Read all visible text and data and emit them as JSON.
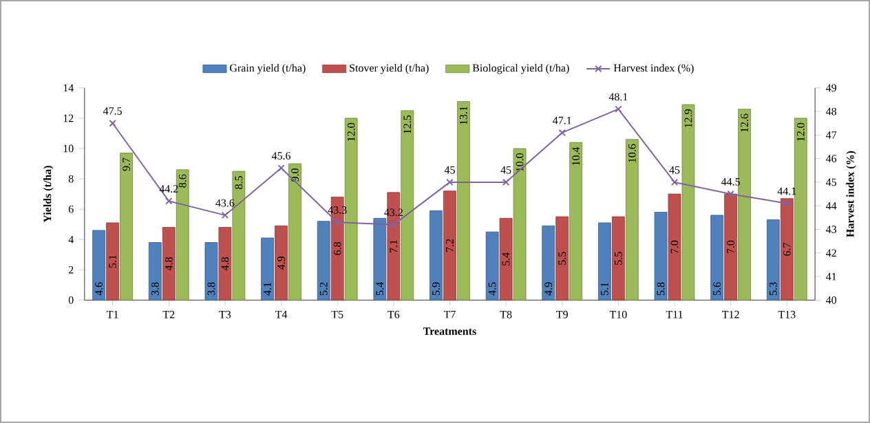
{
  "chart_data": {
    "type": "bar",
    "xlabel": "Treatments",
    "ylabel": "Yields (t/ha)",
    "y2label": "Harvest index (%)",
    "categories": [
      "T1",
      "T2",
      "T3",
      "T4",
      "T5",
      "T6",
      "T7",
      "T8",
      "T9",
      "T10",
      "T11",
      "T12",
      "T13"
    ],
    "series": [
      {
        "name": "Grain yield (t/ha)",
        "type": "bar",
        "color": "#4f81bd",
        "values": [
          4.6,
          3.8,
          3.8,
          4.1,
          5.2,
          5.4,
          5.9,
          4.5,
          4.9,
          5.1,
          5.8,
          5.6,
          5.3
        ],
        "value_labels": [
          "4.6",
          "3.8",
          "3.8",
          "4.1",
          "5.2",
          "5.4",
          "5.9",
          "4.5",
          "4.9",
          "5.1",
          "5.8",
          "5.6",
          "5.3"
        ]
      },
      {
        "name": "Stover yield (t/ha)",
        "type": "bar",
        "color": "#c0504d",
        "values": [
          5.1,
          4.8,
          4.8,
          4.9,
          6.8,
          7.1,
          7.2,
          5.4,
          5.5,
          5.5,
          7.0,
          7.0,
          6.7
        ],
        "value_labels": [
          "5.1",
          "4.8",
          "4.8",
          "4.9",
          "6.8",
          "7.1",
          "7.2",
          "5.4",
          "5.5",
          "5.5",
          "7.0",
          "7.0",
          "6.7"
        ]
      },
      {
        "name": "Biological yield (t/ha)",
        "type": "bar",
        "color": "#9bbb59",
        "values": [
          9.7,
          8.6,
          8.5,
          9.0,
          12.0,
          12.5,
          13.1,
          10.0,
          10.4,
          10.6,
          12.9,
          12.6,
          12.0
        ],
        "value_labels": [
          "9.7",
          "8.6",
          "8.5",
          "9.0",
          "12.0",
          "12.5",
          "13.1",
          "10.0",
          "10.4",
          "10.6",
          "12.9",
          "12.6",
          "12.0"
        ]
      },
      {
        "name": "Harvest index (%)",
        "type": "line",
        "axis": "y2",
        "marker": "cross",
        "color": "#8064a2",
        "values": [
          47.5,
          44.2,
          43.6,
          45.6,
          43.3,
          43.2,
          45,
          45,
          47.1,
          48.1,
          45,
          44.5,
          44.1
        ],
        "value_labels": [
          "47.5",
          "44.2",
          "43.6",
          "45.6",
          "43.3",
          "43.2",
          "45",
          "45",
          "47.1",
          "48.1",
          "45",
          "44.5",
          "44.1"
        ]
      }
    ],
    "ylim": [
      0,
      14
    ],
    "yticks": [
      0,
      2,
      4,
      6,
      8,
      10,
      12,
      14
    ],
    "y2lim": [
      40,
      49
    ],
    "y2ticks": [
      40,
      41,
      42,
      43,
      44,
      45,
      46,
      47,
      48,
      49
    ],
    "legend": "top",
    "grid": false
  }
}
